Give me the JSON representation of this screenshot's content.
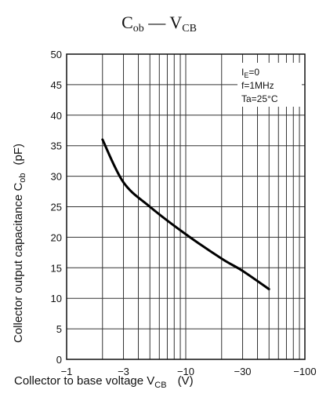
{
  "chart_data": {
    "type": "line",
    "title_main": "C",
    "title_sub": "ob",
    "title_mid": " — V",
    "title_sub2": "CB",
    "xscale": "log",
    "x_tick_labels": [
      "−1",
      "−3",
      "−10",
      "−30",
      "−100"
    ],
    "y_tick_labels": [
      "0",
      "5",
      "10",
      "15",
      "20",
      "25",
      "30",
      "35",
      "40",
      "45",
      "50"
    ],
    "xlim": [
      -1,
      -100
    ],
    "ylim": [
      0,
      50
    ],
    "xlabel_main": "Collector to base voltage   V",
    "xlabel_sub": "CB",
    "xlabel_unit": "(V)",
    "ylabel_main": "Collector output capacitance   C",
    "ylabel_sub": "ob",
    "ylabel_unit": "(pF)",
    "grid": true,
    "conditions": [
      {
        "main": "I",
        "sub": "E",
        "rest": "=0"
      },
      {
        "main": "f=1MHz",
        "sub": "",
        "rest": ""
      },
      {
        "main": "Ta=25°C",
        "sub": "",
        "rest": ""
      }
    ],
    "series": [
      {
        "x": [
          -2,
          -3,
          -5,
          -10,
          -20,
          -30,
          -50
        ],
        "y": [
          36,
          29,
          25,
          20.5,
          16.5,
          14.5,
          11.5
        ]
      }
    ]
  }
}
